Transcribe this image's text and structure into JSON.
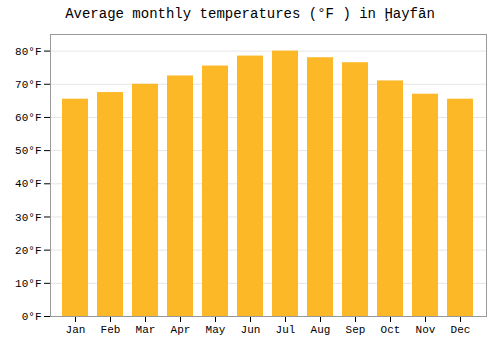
{
  "chart_data": {
    "type": "bar",
    "title": "Average monthly temperatures (°F ) in Ḩayfān",
    "categories": [
      "Jan",
      "Feb",
      "Mar",
      "Apr",
      "May",
      "Jun",
      "Jul",
      "Aug",
      "Sep",
      "Oct",
      "Nov",
      "Dec"
    ],
    "values": [
      65.5,
      67.5,
      70,
      72.5,
      75.5,
      78.5,
      80,
      78,
      76.5,
      71,
      67,
      65.5
    ],
    "color": "#FDB827",
    "ylim": [
      0,
      85
    ],
    "yticks": [
      {
        "value": 0,
        "label": "0°F"
      },
      {
        "value": 10,
        "label": "10°F"
      },
      {
        "value": 20,
        "label": "20°F"
      },
      {
        "value": 30,
        "label": "30°F"
      },
      {
        "value": 40,
        "label": "40°F"
      },
      {
        "value": 50,
        "label": "50°F"
      },
      {
        "value": 60,
        "label": "60°F"
      },
      {
        "value": 70,
        "label": "70°F"
      },
      {
        "value": 80,
        "label": "80°F"
      }
    ],
    "grid": true
  }
}
